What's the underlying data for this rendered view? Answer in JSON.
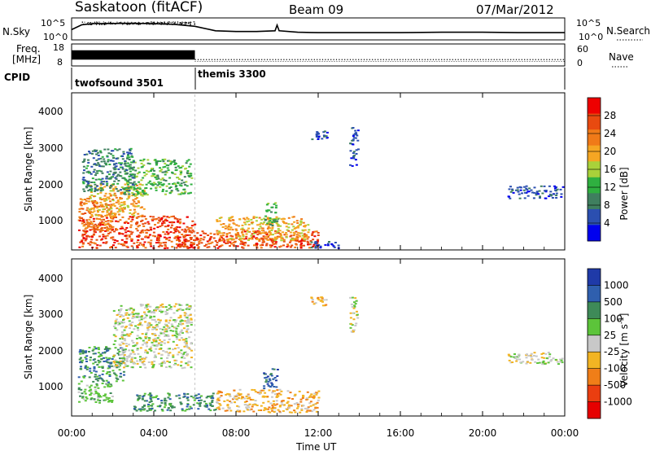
{
  "header": {
    "station": "Saskatoon (fitACF)",
    "beam": "Beam 09",
    "date": "07/Mar/2012"
  },
  "noise_panel": {
    "left_label": "N.Sky",
    "right_label": "N.Search",
    "left_ticks": [
      "10^5",
      "10^0"
    ],
    "right_ticks": [
      "10^5",
      "10^0"
    ]
  },
  "freq_panel": {
    "left_label_line1": "Freq.",
    "left_label_line2": "[MHz]",
    "right_label": "Nave",
    "left_ticks": [
      "18",
      "8"
    ],
    "right_ticks": [
      "60",
      "0"
    ]
  },
  "cpid_panel": {
    "label": "CPID",
    "programs": [
      {
        "name": "twofsound 3501",
        "start_hour": 0,
        "end_hour": 6
      },
      {
        "name": "themis 3300",
        "start_hour": 6,
        "end_hour": 24
      }
    ]
  },
  "power_panel": {
    "ylabel": "Slant Range [km]",
    "yticks": [
      "4000",
      "3000",
      "2000",
      "1000"
    ],
    "colorbar_label": "Power [dB]",
    "colorbar_ticks": [
      "28",
      "24",
      "20",
      "16",
      "12",
      "8",
      "4"
    ],
    "colors": [
      "#0000ee",
      "#2b4fb0",
      "#3f7f5f",
      "#2fb040",
      "#a9d13a",
      "#f5a623",
      "#f07a18",
      "#e84a10",
      "#ee0000"
    ]
  },
  "velocity_panel": {
    "ylabel": "Slant Range [km]",
    "yticks": [
      "4000",
      "3000",
      "2000",
      "1000"
    ],
    "colorbar_label": "Velocity [m s^-1]",
    "colorbar_ticks": [
      "1000",
      "500",
      "100",
      "25",
      "-25",
      "-100",
      "-500",
      "-1000"
    ],
    "colors": [
      "#1f3aa8",
      "#2f5fae",
      "#3e8a58",
      "#5cc43a",
      "#c8c8c8",
      "#f2b423",
      "#f07e18",
      "#ea3e10",
      "#e60000"
    ]
  },
  "x_axis": {
    "ticks": [
      "00:00",
      "04:00",
      "08:00",
      "12:00",
      "16:00",
      "20:00",
      "00:00"
    ],
    "label": "Time UT"
  },
  "chart_data": [
    {
      "type": "line",
      "name": "noise",
      "xlabel": "Time UT",
      "xlim": [
        0,
        24
      ],
      "ylim_log10": [
        0,
        5
      ],
      "series": [
        {
          "name": "N.Sky",
          "x": [
            0,
            0.5,
            1,
            2,
            3,
            4,
            5,
            6,
            7,
            8,
            9,
            9.9,
            10,
            10.1,
            11,
            12,
            14,
            16,
            18,
            20,
            22,
            24
          ],
          "log10": [
            2.3,
            3.6,
            3.9,
            3.95,
            4.0,
            3.9,
            3.7,
            3.2,
            2.0,
            1.8,
            1.8,
            2.0,
            3.5,
            2.0,
            1.6,
            1.5,
            1.5,
            1.5,
            1.6,
            1.6,
            1.5,
            1.5
          ]
        }
      ]
    },
    {
      "type": "line",
      "name": "frequency-nave",
      "xlabel": "Time UT",
      "xlim": [
        0,
        24
      ],
      "series": [
        {
          "name": "Freq. [MHz]",
          "x": [
            0,
            6,
            6,
            24
          ],
          "values": [
            13,
            13,
            10.5,
            10.5
          ],
          "ylim": [
            8,
            18
          ]
        },
        {
          "name": "Nave",
          "x": [
            6,
            24
          ],
          "values": [
            12,
            12
          ],
          "ylim": [
            0,
            60
          ]
        }
      ]
    },
    {
      "type": "heatmap",
      "name": "power",
      "xlabel": "Time UT",
      "ylabel": "Slant Range [km]",
      "xlim": [
        0,
        24
      ],
      "ylim": [
        180,
        4500
      ],
      "value_label": "Power [dB]",
      "value_range": [
        0,
        32
      ],
      "regions": [
        {
          "t0": 0.3,
          "t1": 6.0,
          "r0": 200,
          "r1": 1100,
          "value": 27
        },
        {
          "t0": 0.3,
          "t1": 2.0,
          "r0": 700,
          "r1": 1600,
          "value": 22
        },
        {
          "t0": 0.8,
          "t1": 3.5,
          "r0": 1100,
          "r1": 2000,
          "value": 18
        },
        {
          "t0": 2.5,
          "t1": 5.8,
          "r0": 1700,
          "r1": 2700,
          "value": 12
        },
        {
          "t0": 0.5,
          "t1": 3.0,
          "r0": 1800,
          "r1": 3000,
          "value": 9
        },
        {
          "t0": 5.0,
          "t1": 12.0,
          "r0": 200,
          "r1": 700,
          "value": 28
        },
        {
          "t0": 7.0,
          "t1": 11.5,
          "r0": 400,
          "r1": 1100,
          "value": 18
        },
        {
          "t0": 9.3,
          "t1": 10.0,
          "r0": 800,
          "r1": 1500,
          "value": 12
        },
        {
          "t0": 11.5,
          "t1": 13.0,
          "r0": 200,
          "r1": 400,
          "value": 6
        },
        {
          "t0": 11.6,
          "t1": 12.4,
          "r0": 3250,
          "r1": 3500,
          "value": 7
        },
        {
          "t0": 13.5,
          "t1": 13.9,
          "r0": 2500,
          "r1": 3600,
          "value": 5
        },
        {
          "t0": 21.2,
          "t1": 23.9,
          "r0": 1600,
          "r1": 1950,
          "value": 6
        }
      ]
    },
    {
      "type": "heatmap",
      "name": "velocity",
      "xlabel": "Time UT",
      "ylabel": "Slant Range [km]",
      "xlim": [
        0,
        24
      ],
      "ylim": [
        180,
        4500
      ],
      "value_label": "Velocity [m s^-1]",
      "value_range": [
        -1000,
        1000
      ],
      "regions": [
        {
          "t0": 0.3,
          "t1": 2.0,
          "r0": 500,
          "r1": 1100,
          "value": 60
        },
        {
          "t0": 0.3,
          "t1": 2.5,
          "r0": 1100,
          "r1": 2100,
          "value": 200
        },
        {
          "t0": 2.0,
          "t1": 5.8,
          "r0": 1500,
          "r1": 3300,
          "value": 0
        },
        {
          "t0": 3.0,
          "t1": 7.0,
          "r0": 300,
          "r1": 800,
          "value": 150
        },
        {
          "t0": 7.0,
          "t1": 12.0,
          "r0": 250,
          "r1": 900,
          "value": -80
        },
        {
          "t0": 9.3,
          "t1": 10.0,
          "r0": 900,
          "r1": 1500,
          "value": 500
        },
        {
          "t0": 11.6,
          "t1": 12.4,
          "r0": 3250,
          "r1": 3500,
          "value": -60
        },
        {
          "t0": 13.5,
          "t1": 13.9,
          "r0": 2500,
          "r1": 3500,
          "value": 0
        },
        {
          "t0": 21.2,
          "t1": 23.9,
          "r0": 1600,
          "r1": 1950,
          "value": 0
        }
      ]
    }
  ]
}
